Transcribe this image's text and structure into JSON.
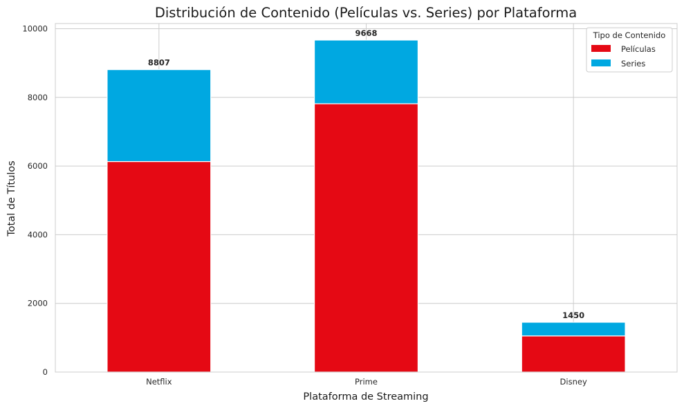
{
  "chart_data": {
    "type": "bar",
    "stacked": true,
    "title": "Distribución de Contenido (Películas vs. Series) por Plataforma",
    "xlabel": "Plataforma de Streaming",
    "ylabel": "Total de Títulos",
    "categories": [
      "Netflix",
      "Prime",
      "Disney"
    ],
    "series": [
      {
        "name": "Películas",
        "color": "#e50914",
        "values": [
          6131,
          7814,
          1052
        ]
      },
      {
        "name": "Series",
        "color": "#00a8e1",
        "values": [
          2676,
          1854,
          398
        ]
      }
    ],
    "totals": [
      8807,
      9668,
      1450
    ],
    "total_labels": [
      "8807",
      "9668",
      "1450"
    ],
    "ylim": [
      0,
      10150
    ],
    "yticks": [
      0,
      2000,
      4000,
      6000,
      8000,
      10000
    ],
    "ytick_labels": [
      "0",
      "2000",
      "4000",
      "6000",
      "8000",
      "10000"
    ],
    "grid": true,
    "legend": {
      "title": "Tipo de Contenido",
      "position": "top-right"
    }
  }
}
